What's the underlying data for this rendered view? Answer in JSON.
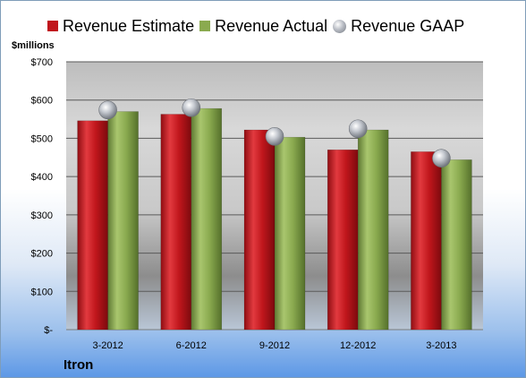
{
  "chart_data": {
    "type": "bar",
    "categories": [
      "3-2012",
      "6-2012",
      "9-2012",
      "12-2012",
      "3-2013"
    ],
    "series": [
      {
        "name": "Revenue Estimate",
        "values": [
          546,
          563,
          522,
          470,
          465
        ],
        "color": "#c0161c",
        "mark": "bar"
      },
      {
        "name": "Revenue Actual",
        "values": [
          570,
          578,
          503,
          522,
          444
        ],
        "color": "#8aaa4f",
        "mark": "bar"
      },
      {
        "name": "Revenue GAAP",
        "values": [
          574,
          580,
          505,
          525,
          448
        ],
        "color": "#b8bcc4",
        "mark": "sphere"
      }
    ],
    "yticks": [
      {
        "value": 0,
        "label": "$-"
      },
      {
        "value": 100,
        "label": "$100"
      },
      {
        "value": 200,
        "label": "$200"
      },
      {
        "value": 300,
        "label": "$300"
      },
      {
        "value": 400,
        "label": "$400"
      },
      {
        "value": 500,
        "label": "$500"
      },
      {
        "value": 600,
        "label": "$600"
      },
      {
        "value": 700,
        "label": "$700"
      }
    ],
    "ylim": [
      0,
      700
    ],
    "ylabel": "$millions",
    "grid": true,
    "legend_position": "top"
  },
  "company": "Itron"
}
